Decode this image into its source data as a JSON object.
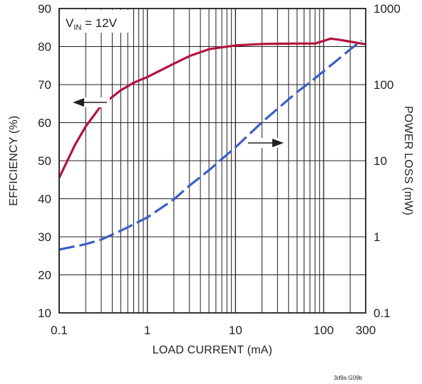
{
  "chart_data": {
    "type": "line",
    "annotation": {
      "label": "V",
      "subscript": "IN",
      "value": " = 12V"
    },
    "figure_code": "3d9a G09b",
    "xlabel": "LOAD CURRENT (mA)",
    "ylabel_left": "EFFICIENCY (%)",
    "ylabel_right": "POWER LOSS (mW)",
    "x_scale": "log",
    "xlim": [
      0.1,
      300
    ],
    "ylim_left": [
      10,
      90
    ],
    "ylim_right": [
      0.1,
      1000
    ],
    "y_right_scale": "log",
    "grid": true,
    "x_ticks": [
      {
        "value": 0.1,
        "label": "0.1"
      },
      {
        "value": 1,
        "label": "1"
      },
      {
        "value": 10,
        "label": "10"
      },
      {
        "value": 100,
        "label": "100"
      },
      {
        "value": 300,
        "label": "300"
      }
    ],
    "y_left_ticks": [
      {
        "value": 10,
        "label": "10"
      },
      {
        "value": 20,
        "label": "20"
      },
      {
        "value": 30,
        "label": "30"
      },
      {
        "value": 40,
        "label": "40"
      },
      {
        "value": 50,
        "label": "50"
      },
      {
        "value": 60,
        "label": "60"
      },
      {
        "value": 70,
        "label": "70"
      },
      {
        "value": 80,
        "label": "80"
      },
      {
        "value": 90,
        "label": "90"
      }
    ],
    "y_right_ticks": [
      {
        "value": 0.1,
        "label": "0.1"
      },
      {
        "value": 1,
        "label": "1"
      },
      {
        "value": 10,
        "label": "10"
      },
      {
        "value": 100,
        "label": "100"
      },
      {
        "value": 1000,
        "label": "1000"
      }
    ],
    "series": [
      {
        "axis": "left",
        "color": "#b5123e",
        "style": "solid",
        "arrow": "left",
        "points": [
          [
            0.1,
            45.5
          ],
          [
            0.15,
            54
          ],
          [
            0.2,
            59
          ],
          [
            0.3,
            64.5
          ],
          [
            0.5,
            68.5
          ],
          [
            0.7,
            70.5
          ],
          [
            1,
            72
          ],
          [
            2,
            75.5
          ],
          [
            3,
            77.5
          ],
          [
            5,
            79.3
          ],
          [
            7,
            79.8
          ],
          [
            10,
            80.3
          ],
          [
            20,
            80.7
          ],
          [
            50,
            80.8
          ],
          [
            80,
            80.8
          ],
          [
            100,
            81.5
          ],
          [
            120,
            82.1
          ],
          [
            150,
            81.8
          ],
          [
            200,
            81.3
          ],
          [
            300,
            80.6
          ]
        ]
      },
      {
        "axis": "right",
        "color": "#3a5fc8",
        "style": "dashed",
        "arrow": "right",
        "points": [
          [
            0.1,
            0.68
          ],
          [
            0.2,
            0.8
          ],
          [
            0.3,
            0.92
          ],
          [
            0.5,
            1.2
          ],
          [
            1,
            1.8
          ],
          [
            2,
            3.1
          ],
          [
            3,
            4.7
          ],
          [
            5,
            7.5
          ],
          [
            7,
            10.5
          ],
          [
            10,
            15
          ],
          [
            20,
            32
          ],
          [
            30,
            48
          ],
          [
            50,
            80
          ],
          [
            70,
            107
          ],
          [
            100,
            150
          ],
          [
            150,
            220
          ],
          [
            200,
            290
          ],
          [
            270,
            380
          ]
        ]
      }
    ]
  }
}
